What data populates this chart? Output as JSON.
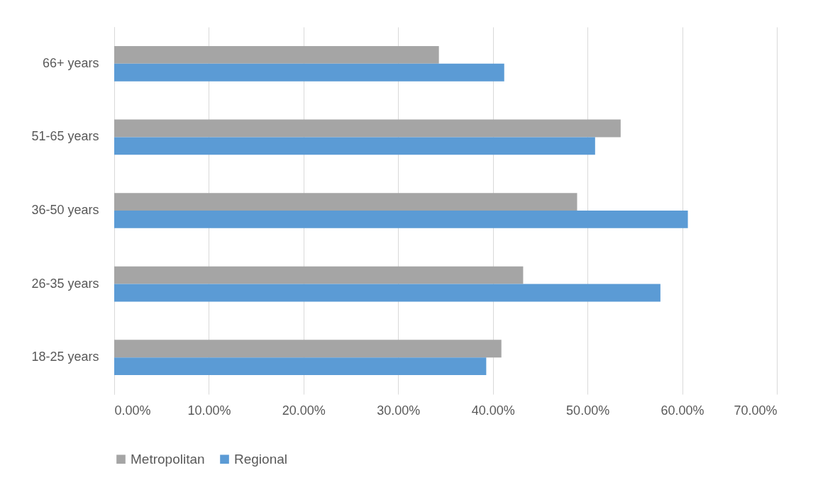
{
  "chart_data": {
    "type": "bar",
    "orientation": "horizontal",
    "categories": [
      "66+ years",
      "51-65 years",
      "36-50 years",
      "26-35 years",
      "18-25 years"
    ],
    "series": [
      {
        "name": "Metropolitan",
        "color": "#a5a5a5",
        "values": [
          34.3,
          53.5,
          48.9,
          43.2,
          40.9
        ]
      },
      {
        "name": "Regional",
        "color": "#5b9bd5",
        "values": [
          41.2,
          50.8,
          60.6,
          57.7,
          39.3
        ]
      }
    ],
    "xlim": [
      0,
      70
    ],
    "xticks": [
      {
        "value": 0,
        "label": "0.00%"
      },
      {
        "value": 10,
        "label": "10.00%"
      },
      {
        "value": 20,
        "label": "20.00%"
      },
      {
        "value": 30,
        "label": "30.00%"
      },
      {
        "value": 40,
        "label": "40.00%"
      },
      {
        "value": 50,
        "label": "50.00%"
      },
      {
        "value": 60,
        "label": "60.00%"
      },
      {
        "value": 70,
        "label": "70.00%"
      }
    ],
    "grid": "x",
    "legend": "bottom"
  }
}
